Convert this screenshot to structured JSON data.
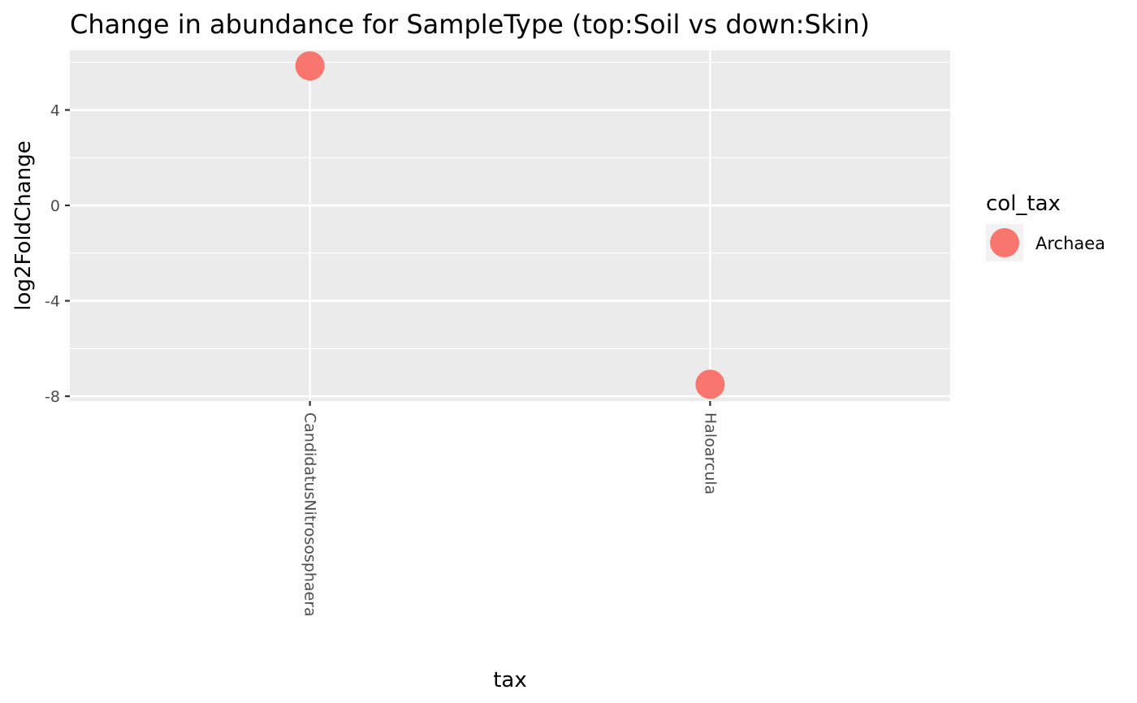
{
  "chart_data": {
    "type": "scatter",
    "title": "Change in abundance for SampleType (top:Soil vs down:Skin)",
    "xlabel": "tax",
    "ylabel": "log2FoldChange",
    "categories": [
      "CandidatusNitrososphaera",
      "Haloarcula"
    ],
    "series": [
      {
        "name": "Archaea",
        "color": "#F8766D",
        "points": [
          {
            "x": "CandidatusNitrososphaera",
            "y": 5.85
          },
          {
            "x": "Haloarcula",
            "y": -7.5
          }
        ]
      }
    ],
    "ylim": [
      -8.2,
      6.5
    ],
    "yticks": [
      -8,
      -4,
      0,
      4
    ],
    "ytick_labels": [
      "-8",
      "-4",
      "0",
      "4"
    ],
    "grid": true,
    "legend": {
      "title": "col_tax",
      "position": "right"
    },
    "panel_color": "#EBEBEB",
    "grid_color": "#FFFFFF"
  }
}
